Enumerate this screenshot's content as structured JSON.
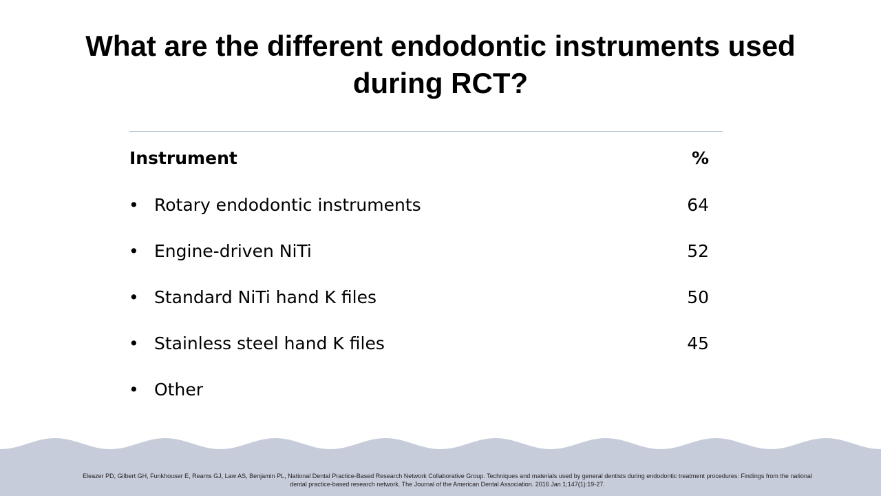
{
  "header": {
    "title": "What are the different endodontic instruments used during RCT?"
  },
  "table": {
    "columns": [
      "Instrument",
      "%"
    ],
    "rows": [
      {
        "label": "Rotary endodontic instruments",
        "value": 64
      },
      {
        "label": "Engine-driven NiTi",
        "value": 52
      },
      {
        "label": "Standard NiTi hand K files",
        "value": 50
      },
      {
        "label": "Stainless steel hand K files",
        "value": 45
      },
      {
        "label": "Other"
      }
    ]
  },
  "footer": {
    "citation": "Eleazer PD, Gilbert GH, Funkhouser E, Reams GJ, Law AS, Benjamin PL, National Dental Practice-Based Research Network Collaborative Group. Techniques and materials used by general dentists during endodontic treatment procedures: Findings from the national dental practice-based research network. The Journal of the American Dental Association. 2016 Jan 1;147(1):19-27."
  }
}
